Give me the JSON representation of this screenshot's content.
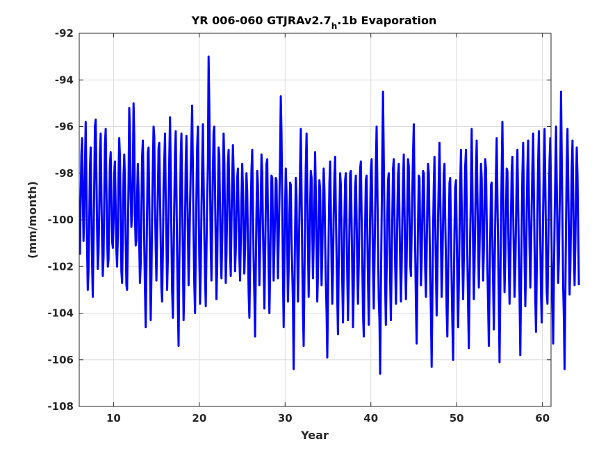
{
  "chart_data": {
    "type": "line",
    "title": {
      "prefix": "YR 006-060 GTJRAv2.7",
      "subscript": "h",
      "suffix": ".1b Evaporation"
    },
    "xlabel": "Year",
    "ylabel": "(mm/month)",
    "xlim": [
      6,
      61
    ],
    "ylim": [
      -108,
      -92
    ],
    "xticks": [
      10,
      20,
      30,
      40,
      50,
      60
    ],
    "yticks": [
      -108,
      -106,
      -104,
      -102,
      -100,
      -98,
      -96,
      -94,
      -92
    ],
    "grid": true,
    "line_color": "#0000ff",
    "series": [
      {
        "x_start": 6.0833,
        "x_step": 0.083333,
        "values": [
          -101.5,
          -99.0,
          -97.2,
          -96.5,
          -98.8,
          -100.9,
          -99.8,
          -97.9,
          -95.8,
          -98.3,
          -101.1,
          -103.0,
          -102.2,
          -100.2,
          -97.8,
          -96.9,
          -99.5,
          -101.8,
          -103.3,
          -101.0,
          -98.6,
          -96.0,
          -95.7,
          -98.0,
          -100.3,
          -102.1,
          -101.4,
          -99.7,
          -97.2,
          -96.3,
          -98.9,
          -100.8,
          -102.4,
          -101.6,
          -99.2,
          -96.8,
          -96.1,
          -98.5,
          -100.6,
          -102.0,
          -101.7,
          -99.4,
          -97.6,
          -97.1,
          -99.2,
          -100.9,
          -101.2,
          -100.1,
          -98.0,
          -97.5,
          -99.5,
          -101.3,
          -102.0,
          -100.7,
          -98.1,
          -96.5,
          -97.3,
          -99.8,
          -102.2,
          -102.7,
          -100.5,
          -98.1,
          -97.2,
          -98.2,
          -100.9,
          -102.8,
          -103.0,
          -100.8,
          -98.4,
          -95.2,
          -96.3,
          -99.0,
          -100.3,
          -99.7,
          -98.0,
          -95.0,
          -96.4,
          -99.8,
          -101.1,
          -100.9,
          -99.0,
          -97.6,
          -98.8,
          -101.0,
          -102.7,
          -101.9,
          -99.6,
          -97.3,
          -96.6,
          -98.5,
          -101.0,
          -103.0,
          -104.6,
          -102.1,
          -99.6,
          -97.1,
          -96.9,
          -99.1,
          -101.8,
          -104.3,
          -102.5,
          -99.8,
          -97.7,
          -96.0,
          -96.4,
          -99.4,
          -101.2,
          -102.6,
          -100.8,
          -98.9,
          -96.9,
          -96.7,
          -99.0,
          -101.0,
          -102.9,
          -103.5,
          -101.3,
          -98.6,
          -97.5,
          -96.3,
          -99.0,
          -100.8,
          -103.0,
          -101.6,
          -99.5,
          -97.4,
          -95.6,
          -97.9,
          -100.6,
          -103.0,
          -104.2,
          -101.9,
          -99.4,
          -97.1,
          -96.2,
          -98.7,
          -101.4,
          -103.7,
          -105.4,
          -102.0,
          -99.6,
          -97.2,
          -96.3,
          -98.9,
          -101.5,
          -104.3,
          -102.8,
          -100.2,
          -97.6,
          -96.4,
          -98.3,
          -100.5,
          -102.8,
          -101.5,
          -99.4,
          -97.8,
          -96.6,
          -95.1,
          -97.8,
          -100.6,
          -102.7,
          -104.0,
          -101.5,
          -99.0,
          -96.9,
          -96.0,
          -98.9,
          -101.5,
          -103.6,
          -102.1,
          -99.7,
          -97.5,
          -95.9,
          -98.3,
          -100.5,
          -102.4,
          -103.7,
          -101.4,
          -99.1,
          -97.6,
          -93.0,
          -95.1,
          -98.4,
          -101.2,
          -102.6,
          -100.2,
          -97.9,
          -96.2,
          -96.0,
          -98.8,
          -101.1,
          -103.4,
          -101.9,
          -99.2,
          -96.9,
          -97.2,
          -99.6,
          -101.6,
          -102.5,
          -100.8,
          -98.4,
          -96.3,
          -97.4,
          -100.2,
          -102.7,
          -101.5,
          -99.3,
          -97.6,
          -97.0,
          -99.0,
          -101.4,
          -102.4,
          -100.1,
          -98.2,
          -96.8,
          -97.9,
          -100.3,
          -102.2,
          -101.3,
          -99.6,
          -98.2,
          -97.8,
          -99.8,
          -101.5,
          -102.6,
          -101.0,
          -99.1,
          -97.6,
          -98.6,
          -100.7,
          -102.3,
          -101.2,
          -99.4,
          -98.0,
          -98.8,
          -101.0,
          -103.1,
          -104.2,
          -102.0,
          -99.6,
          -97.9,
          -97.0,
          -99.5,
          -101.7,
          -103.3,
          -105.0,
          -102.2,
          -99.7,
          -97.9,
          -98.5,
          -100.6,
          -102.8,
          -101.3,
          -99.2,
          -97.2,
          -98.0,
          -100.3,
          -102.0,
          -103.8,
          -101.6,
          -99.4,
          -97.6,
          -97.4,
          -99.8,
          -102.0,
          -104.0,
          -102.4,
          -99.9,
          -98.1,
          -98.2,
          -100.5,
          -102.6,
          -101.2,
          -99.6,
          -98.2,
          -98.3,
          -100.5,
          -102.5,
          -101.0,
          -99.1,
          -97.3,
          -94.7,
          -96.3,
          -99.2,
          -102.3,
          -104.6,
          -101.8,
          -99.5,
          -97.8,
          -98.8,
          -101.2,
          -103.5,
          -102.1,
          -99.8,
          -98.4,
          -98.5,
          -100.8,
          -102.2,
          -103.6,
          -106.4,
          -103.2,
          -100.4,
          -98.2,
          -99.0,
          -101.4,
          -103.5,
          -101.9,
          -99.8,
          -97.7,
          -96.1,
          -98.9,
          -101.7,
          -103.9,
          -105.4,
          -102.6,
          -100.0,
          -97.7,
          -96.3,
          -98.6,
          -101.0,
          -103.3,
          -101.5,
          -99.5,
          -97.9,
          -98.2,
          -100.5,
          -102.5,
          -101.0,
          -99.1,
          -97.1,
          -98.8,
          -101.2,
          -103.5,
          -102.3,
          -100.0,
          -98.3,
          -98.7,
          -100.9,
          -102.8,
          -101.4,
          -99.4,
          -97.8,
          -98.7,
          -100.8,
          -102.6,
          -104.0,
          -105.9,
          -103.4,
          -100.6,
          -98.4,
          -97.5,
          -99.4,
          -101.9,
          -103.6,
          -102.2,
          -99.8,
          -98.1,
          -97.3,
          -99.6,
          -101.6,
          -103.4,
          -104.9,
          -102.1,
          -99.7,
          -98.0,
          -98.5,
          -100.6,
          -102.7,
          -104.4,
          -102.3,
          -100.0,
          -98.3,
          -98.0,
          -100.3,
          -102.4,
          -104.3,
          -102.7,
          -100.3,
          -98.0,
          -97.9,
          -100.1,
          -102.2,
          -104.6,
          -102.9,
          -100.4,
          -98.6,
          -98.1,
          -100.0,
          -102.1,
          -103.6,
          -101.9,
          -99.6,
          -97.8,
          -97.5,
          -99.8,
          -101.8,
          -104.0,
          -105.0,
          -102.4,
          -100.2,
          -98.3,
          -98.1,
          -100.4,
          -102.6,
          -104.5,
          -102.2,
          -99.8,
          -97.9,
          -97.4,
          -99.6,
          -101.9,
          -103.8,
          -101.9,
          -99.7,
          -97.7,
          -96.0,
          -98.3,
          -101.0,
          -103.4,
          -104.3,
          -106.6,
          -103.0,
          -100.0,
          -97.2,
          -94.5,
          -97.4,
          -100.2,
          -102.8,
          -104.5,
          -102.2,
          -99.9,
          -98.3,
          -98.0,
          -100.4,
          -102.6,
          -104.3,
          -102.0,
          -99.8,
          -97.8,
          -97.4,
          -99.8,
          -101.9,
          -103.6,
          -102.0,
          -99.8,
          -98.1,
          -97.6,
          -99.9,
          -101.8,
          -103.5,
          -102.1,
          -100.0,
          -98.4,
          -97.2,
          -99.5,
          -101.7,
          -103.4,
          -101.7,
          -99.5,
          -97.4,
          -97.7,
          -99.9,
          -101.9,
          -102.4,
          -100.5,
          -98.8,
          -97.2,
          -95.9,
          -98.7,
          -101.2,
          -103.7,
          -105.3,
          -102.7,
          -100.2,
          -98.1,
          -98.2,
          -100.5,
          -102.8,
          -101.8,
          -99.7,
          -97.9,
          -98.0,
          -100.2,
          -102.1,
          -103.3,
          -101.4,
          -99.4,
          -97.6,
          -98.0,
          -100.3,
          -102.4,
          -104.0,
          -106.3,
          -103.5,
          -100.6,
          -98.5,
          -97.3,
          -99.8,
          -102.2,
          -104.1,
          -102.4,
          -100.1,
          -98.2,
          -96.7,
          -98.8,
          -101.0,
          -103.3,
          -102.0,
          -99.9,
          -98.0,
          -97.6,
          -99.9,
          -101.8,
          -103.9,
          -105.0,
          -102.5,
          -100.3,
          -98.4,
          -98.2,
          -100.4,
          -102.6,
          -104.4,
          -106.0,
          -103.1,
          -100.4,
          -98.6,
          -98.3,
          -100.5,
          -102.7,
          -104.6,
          -102.8,
          -100.5,
          -98.5,
          -97.0,
          -99.3,
          -101.6,
          -103.4,
          -101.7,
          -99.6,
          -97.7,
          -97.0,
          -99.3,
          -101.6,
          -103.8,
          -105.5,
          -103.0,
          -100.6,
          -98.6,
          -96.1,
          -98.5,
          -101.2,
          -103.4,
          -102.0,
          -99.9,
          -98.0,
          -96.6,
          -98.8,
          -101.0,
          -102.9,
          -101.2,
          -99.3,
          -97.6,
          -98.2,
          -100.6,
          -102.6,
          -101.3,
          -99.2,
          -97.4,
          -97.8,
          -100.0,
          -102.0,
          -103.7,
          -105.4,
          -102.9,
          -100.6,
          -98.5,
          -98.4,
          -100.7,
          -102.8,
          -104.7,
          -102.3,
          -100.0,
          -98.0,
          -96.5,
          -98.9,
          -101.2,
          -103.5,
          -106.1,
          -103.1,
          -100.2,
          -97.9,
          -95.8,
          -98.5,
          -101.1,
          -103.1,
          -101.6,
          -99.6,
          -97.8,
          -97.9,
          -100.0,
          -102.0,
          -103.6,
          -101.9,
          -99.8,
          -97.9,
          -97.3,
          -99.6,
          -101.5,
          -103.3,
          -102.1,
          -100.1,
          -98.2,
          -97.0,
          -99.3,
          -101.5,
          -103.2,
          -105.8,
          -102.9,
          -100.3,
          -98.0,
          -96.7,
          -99.1,
          -101.6,
          -103.7,
          -102.1,
          -99.9,
          -97.8,
          -96.6,
          -98.9,
          -101.1,
          -102.9,
          -101.3,
          -99.4,
          -97.7,
          -96.3,
          -98.7,
          -101.2,
          -103.4,
          -104.8,
          -102.3,
          -99.8,
          -97.5,
          -96.2,
          -98.6,
          -101.0,
          -103.2,
          -104.4,
          -102.0,
          -99.6,
          -97.6,
          -96.1,
          -98.5,
          -101.0,
          -103.1,
          -103.6,
          -101.5,
          -99.3,
          -97.4,
          -96.5,
          -99.0,
          -101.5,
          -103.6,
          -105.3,
          -102.6,
          -100.1,
          -98.0,
          -96.0,
          -98.4,
          -100.9,
          -102.7,
          -101.7,
          -99.6,
          -97.7,
          -94.5,
          -97.3,
          -100.1,
          -102.9,
          -104.2,
          -106.4,
          -103.2,
          -100.2,
          -97.6,
          -96.1,
          -98.3,
          -100.7,
          -103.2,
          -102.1,
          -99.9,
          -97.8,
          -96.6,
          -99.0,
          -101.3,
          -102.8,
          -101.0,
          -98.7,
          -96.9,
          -98.1,
          -100.5,
          -102.8
        ]
      }
    ]
  }
}
